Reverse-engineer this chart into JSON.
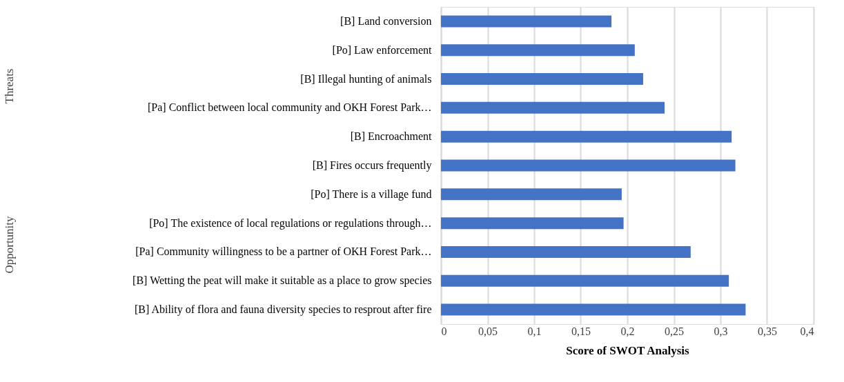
{
  "chart_data": {
    "type": "bar",
    "orientation": "horizontal",
    "xlabel": "Score of SWOT Analysis",
    "categories": [
      "[B] Land conversion",
      "[Po] Law enforcement",
      "[B] Illegal hunting of animals",
      "[Pa] Conflict between local community and OKH Forest Park…",
      "[B] Encroachment",
      "[B] Fires occurs frequently",
      "[Po] There is a village fund",
      "[Po] The existence of local regulations or regulations through…",
      "[Pa] Community willingness to be a partner of OKH Forest Park…",
      "[B] Wetting the peat will make it suitable as a place to grow species",
      "[B] Ability of flora and fauna diversity species to resprout after fire"
    ],
    "values": [
      0.183,
      0.208,
      0.217,
      0.24,
      0.312,
      0.316,
      0.194,
      0.196,
      0.268,
      0.309,
      0.327
    ],
    "color": "#4472c4",
    "xlim": [
      0,
      0.4
    ],
    "xticks": [
      0,
      {
        "value": 0.05,
        "label": "0,05"
      },
      {
        "value": 0.1,
        "label": "0,1"
      },
      {
        "value": 0.15,
        "label": "0,15"
      },
      {
        "value": 0.2,
        "label": "0,2"
      },
      {
        "value": 0.25,
        "label": "0,25"
      },
      {
        "value": 0.3,
        "label": "0,3"
      },
      {
        "value": 0.35,
        "label": "0,35"
      },
      {
        "value": 0.4,
        "label": "0,4"
      }
    ],
    "grid": "x",
    "annotations": [
      "Threats",
      "Opportunity"
    ]
  }
}
